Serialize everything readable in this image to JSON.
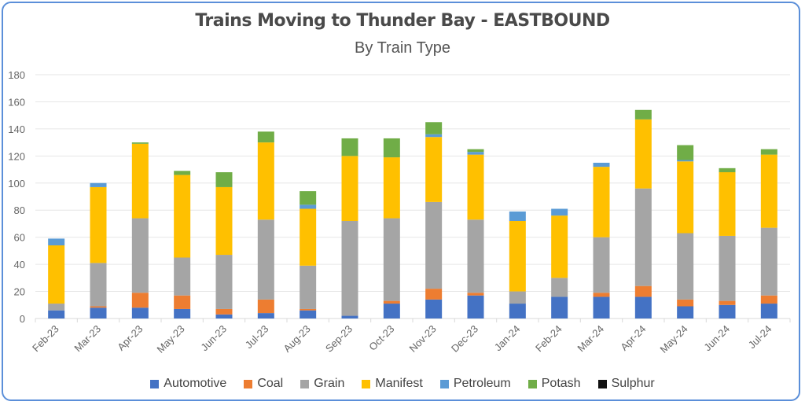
{
  "chart_data": {
    "type": "bar",
    "stacked": true,
    "title": "Trains Moving to Thunder Bay - EASTBOUND",
    "subtitle": "By Train Type",
    "xlabel": "",
    "ylabel": "",
    "ylim": [
      0,
      180
    ],
    "yticks": [
      "0",
      "20",
      "40",
      "60",
      "80",
      "100",
      "120",
      "140",
      "160",
      "180"
    ],
    "grid": true,
    "legend_position": "bottom",
    "categories": [
      "Feb-23",
      "Mar-23",
      "Apr-23",
      "May-23",
      "Jun-23",
      "Jul-23",
      "Aug-23",
      "Sep-23",
      "Oct-23",
      "Nov-23",
      "Dec-23",
      "Jan-24",
      "Feb-24",
      "Mar-24",
      "Apr-24",
      "May-24",
      "Jun-24",
      "Jul-24"
    ],
    "series": [
      {
        "name": "Automotive",
        "color": "#4472c4",
        "values": [
          6,
          8,
          8,
          7,
          3,
          4,
          6,
          2,
          11,
          14,
          17,
          11,
          16,
          16,
          16,
          9,
          10,
          11
        ]
      },
      {
        "name": "Coal",
        "color": "#ed7d31",
        "values": [
          0,
          1,
          11,
          10,
          4,
          10,
          1,
          0,
          2,
          8,
          2,
          0,
          0,
          3,
          8,
          5,
          3,
          6
        ]
      },
      {
        "name": "Grain",
        "color": "#a5a5a5",
        "values": [
          5,
          32,
          55,
          28,
          40,
          59,
          32,
          70,
          61,
          64,
          54,
          9,
          14,
          41,
          72,
          49,
          48,
          50
        ]
      },
      {
        "name": "Manifest",
        "color": "#ffc000",
        "values": [
          43,
          56,
          55,
          61,
          50,
          57,
          42,
          48,
          45,
          48,
          48,
          52,
          46,
          52,
          51,
          53,
          47,
          54
        ]
      },
      {
        "name": "Petroleum",
        "color": "#5b9bd5",
        "values": [
          5,
          3,
          0,
          0,
          0,
          0,
          3,
          0,
          0,
          2,
          2,
          7,
          5,
          3,
          0,
          1,
          0,
          0
        ]
      },
      {
        "name": "Potash",
        "color": "#70ad47",
        "values": [
          0,
          0,
          1,
          3,
          11,
          8,
          10,
          13,
          14,
          9,
          2,
          0,
          0,
          0,
          7,
          11,
          3,
          4
        ]
      },
      {
        "name": "Sulphur",
        "color": "#111111",
        "values": [
          0,
          0,
          0,
          0,
          0,
          0,
          0,
          0,
          0,
          0,
          0,
          0,
          0,
          0,
          0,
          0,
          0,
          0
        ]
      }
    ]
  }
}
